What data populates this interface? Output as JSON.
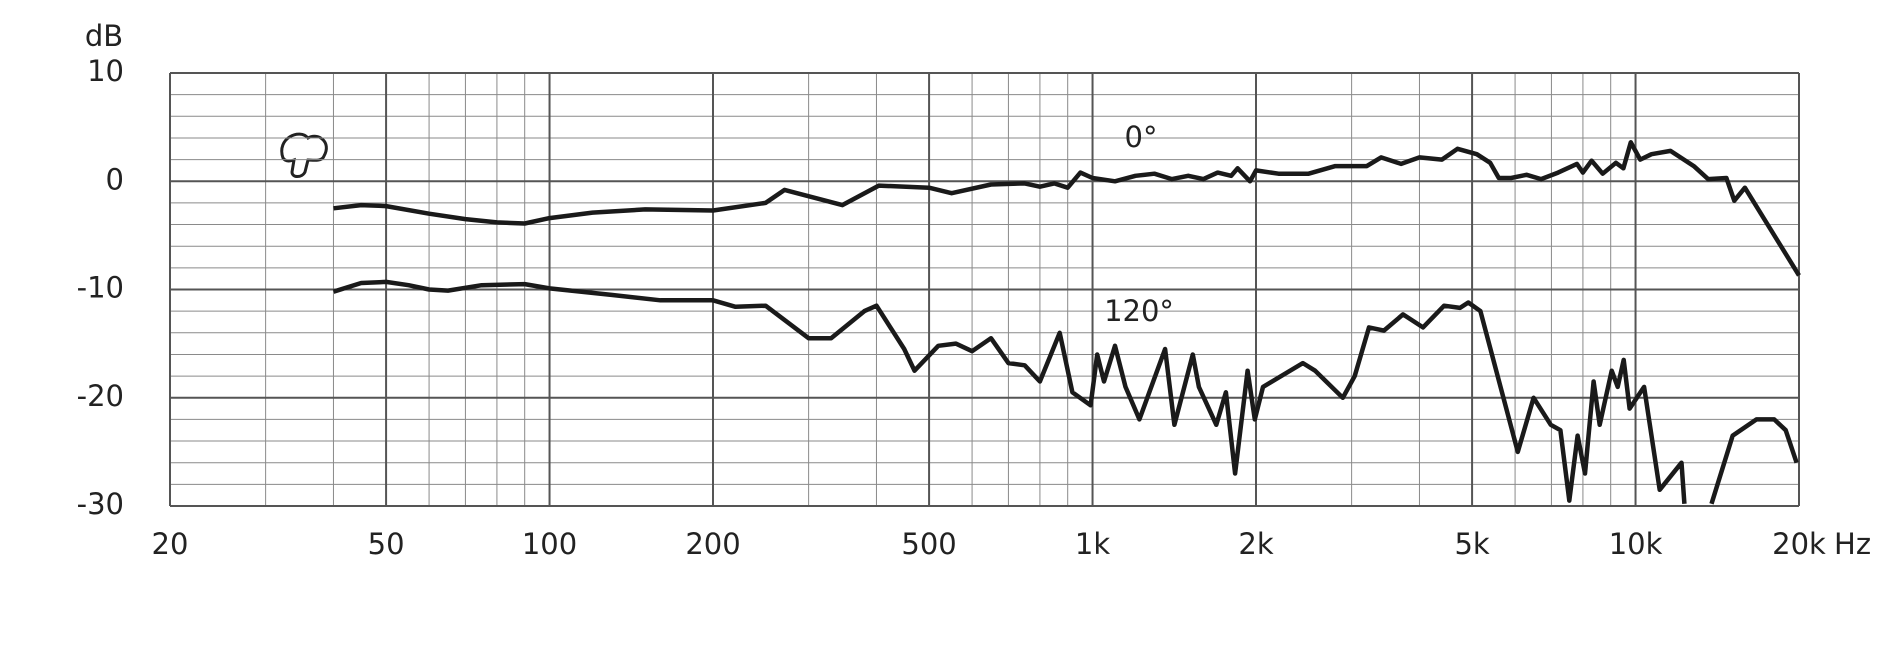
{
  "chart_data": {
    "type": "line",
    "x_label": "Hz",
    "y_label": "dB",
    "xscale": "log",
    "grid": true,
    "xlim": [
      20,
      20000
    ],
    "ylim": [
      -30,
      10
    ],
    "xticks": [
      20,
      50,
      100,
      200,
      500,
      {
        "value": 1000,
        "label": "1k"
      },
      {
        "value": 2000,
        "label": "2k"
      },
      {
        "value": 5000,
        "label": "5k"
      },
      {
        "value": 10000,
        "label": "10k"
      },
      {
        "value": 20000,
        "label": "20k"
      }
    ],
    "x_minor_ticks": [
      30,
      40,
      60,
      70,
      80,
      90,
      300,
      400,
      600,
      700,
      800,
      900,
      3000,
      4000,
      6000,
      7000,
      8000,
      9000
    ],
    "yticks": [
      10,
      0,
      -10,
      -20,
      -30
    ],
    "y_minor_ticks": [
      8,
      6,
      4,
      2,
      -2,
      -4,
      -6,
      -8,
      -12,
      -14,
      -16,
      -18,
      -22,
      -24,
      -26,
      -28
    ],
    "series": [
      {
        "name": "0°",
        "color": "#1a1a1a",
        "x": [
          40,
          45,
          50,
          60,
          70,
          80,
          90,
          100,
          120,
          150,
          200,
          250,
          271,
          346,
          404,
          500,
          550,
          650,
          750,
          800,
          850,
          900,
          950,
          1000,
          1100,
          1200,
          1300,
          1400,
          1500,
          1600,
          1700,
          1800,
          1850,
          1950,
          2000,
          2200,
          2500,
          2800,
          3200,
          3400,
          3700,
          4000,
          4400,
          4700,
          5100,
          5400,
          5600,
          5900,
          6300,
          6700,
          7200,
          7800,
          8000,
          8300,
          8700,
          9200,
          9500,
          9800,
          10200,
          10700,
          11600,
          12800,
          13600,
          14700,
          15200,
          15900,
          20000
        ],
        "values": [
          -2.5,
          -2.2,
          -2.3,
          -3.0,
          -3.5,
          -3.8,
          -3.9,
          -3.4,
          -2.9,
          -2.6,
          -2.7,
          -2.0,
          -0.8,
          -2.2,
          -0.4,
          -0.6,
          -1.1,
          -0.3,
          -0.2,
          -0.5,
          -0.2,
          -0.6,
          0.8,
          0.3,
          0.0,
          0.5,
          0.7,
          0.2,
          0.5,
          0.2,
          0.8,
          0.5,
          1.2,
          0.0,
          1.0,
          0.7,
          0.7,
          1.4,
          1.4,
          2.2,
          1.6,
          2.2,
          2.0,
          3.0,
          2.5,
          1.7,
          0.3,
          0.3,
          0.6,
          0.2,
          0.8,
          1.6,
          0.8,
          1.9,
          0.7,
          1.7,
          1.2,
          3.6,
          2.0,
          2.5,
          2.8,
          1.4,
          0.2,
          0.3,
          -1.8,
          -0.6,
          -8.7
        ]
      },
      {
        "name": "120°",
        "color": "#1a1a1a",
        "x": [
          40,
          45,
          50,
          55,
          60,
          65,
          75,
          90,
          100,
          130,
          160,
          200,
          220,
          250,
          300,
          330,
          380,
          400,
          450,
          470,
          520,
          560,
          600,
          650,
          700,
          750,
          800,
          870,
          918,
          992,
          1020,
          1050,
          1100,
          1150,
          1220,
          1360,
          1415,
          1530,
          1570,
          1690,
          1760,
          1830,
          1930,
          1990,
          2060,
          2440,
          2570,
          2890,
          3040,
          3230,
          3440,
          3730,
          4060,
          4440,
          4750,
          4920,
          5180,
          6070,
          6490,
          6980,
          7270,
          7550,
          7820,
          8070,
          8370,
          8590,
          9040,
          9270,
          9510,
          9750,
          10370,
          11080,
          12150,
          12300,
          13000,
          13800,
          15100,
          16700,
          18000,
          18900,
          19800
        ],
        "values": [
          -10.2,
          -9.4,
          -9.3,
          -9.6,
          -10.0,
          -10.1,
          -9.6,
          -9.5,
          -9.9,
          -10.5,
          -11.0,
          -11.0,
          -11.6,
          -11.5,
          -14.5,
          -14.5,
          -12.0,
          -11.5,
          -15.5,
          -17.5,
          -15.2,
          -15.0,
          -15.7,
          -14.5,
          -16.8,
          -17.0,
          -18.5,
          -14.0,
          -19.5,
          -20.7,
          -16.0,
          -18.5,
          -15.2,
          -19.0,
          -22.0,
          -15.5,
          -22.5,
          -16.0,
          -19.0,
          -22.5,
          -19.5,
          -27.0,
          -17.5,
          -22.0,
          -19.0,
          -16.8,
          -17.5,
          -20.0,
          -18.0,
          -13.5,
          -13.8,
          -12.3,
          -13.5,
          -11.5,
          -11.7,
          -11.2,
          -12.0,
          -25.0,
          -20.0,
          -22.5,
          -23.0,
          -29.5,
          -23.5,
          -27.0,
          -18.5,
          -22.5,
          -17.5,
          -19.0,
          -16.5,
          -21.0,
          -19.0,
          -28.5,
          -26.0,
          -29.8,
          null,
          -29.8,
          -23.5,
          -22.0,
          -22.0,
          -23.0,
          -26.0
        ]
      }
    ]
  }
}
